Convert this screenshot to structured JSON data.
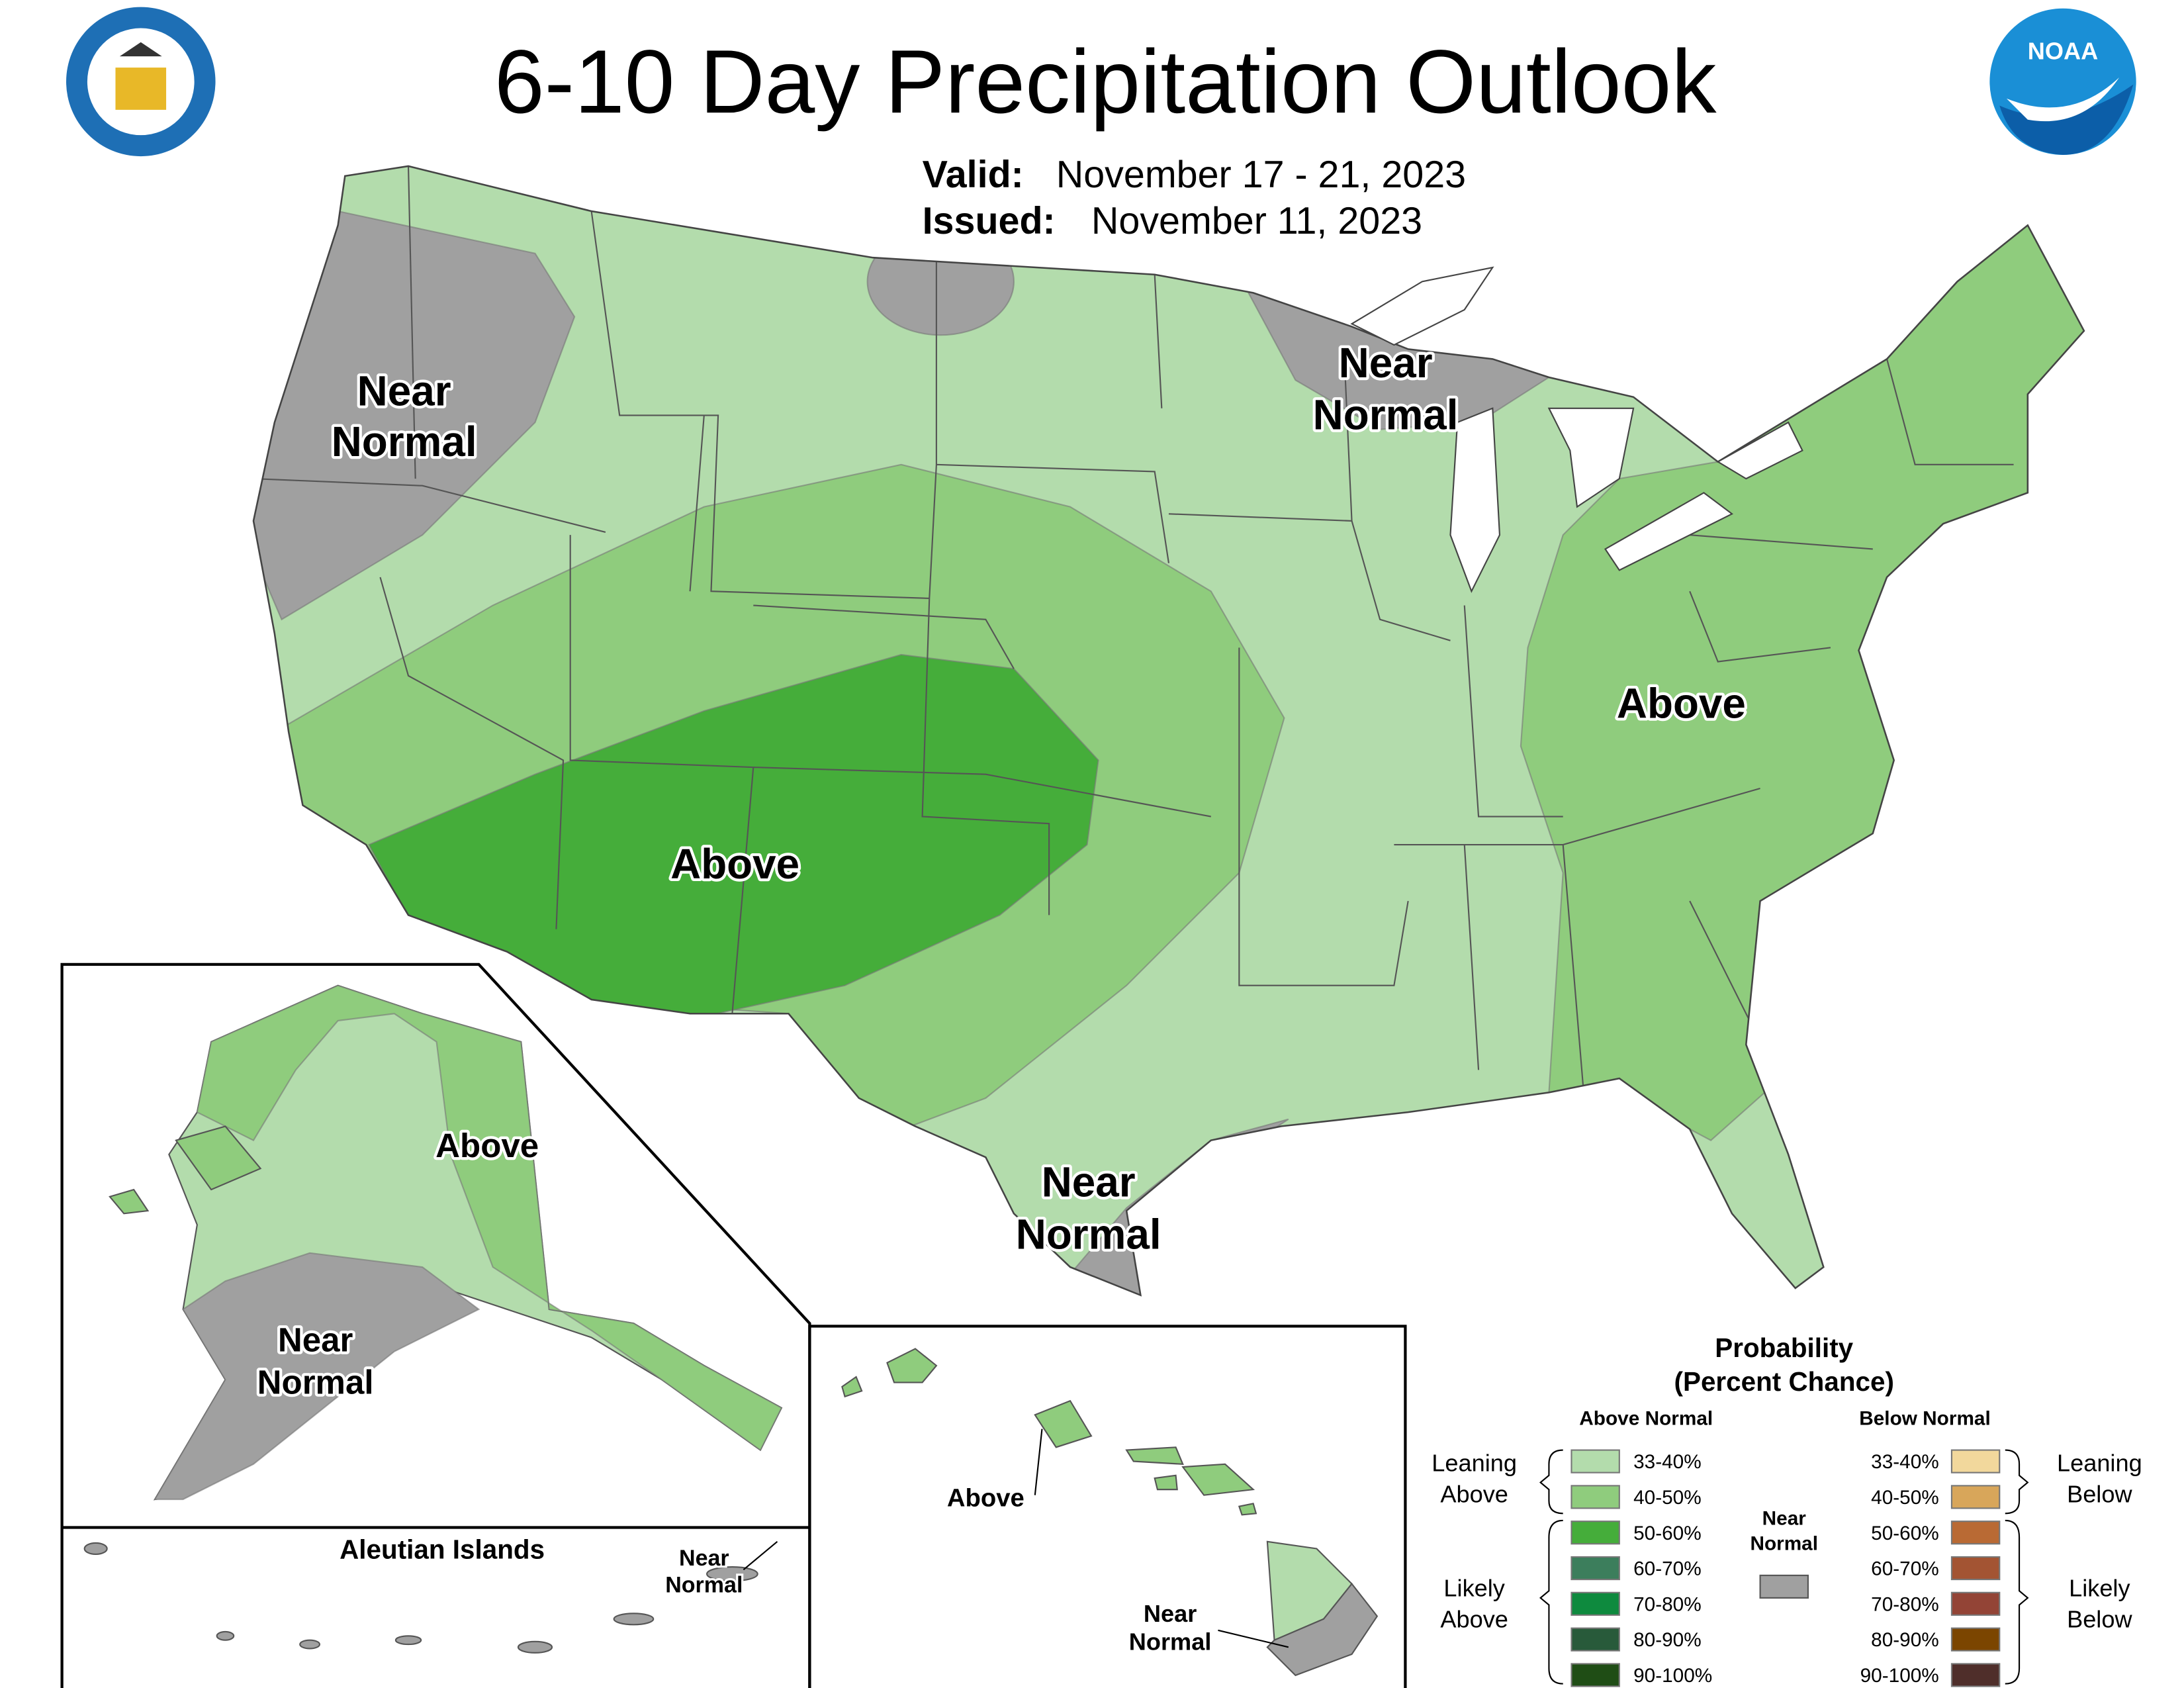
{
  "header": {
    "title": "6-10 Day Precipitation Outlook",
    "valid_label": "Valid:",
    "valid": "November 17 - 21, 2023",
    "issued_label": "Issued:",
    "issued": "November 11, 2023"
  },
  "logos": {
    "noaa": "NOAA"
  },
  "conus_labels": [
    [
      "Near",
      "Normal"
    ],
    [
      "Near",
      "Normal"
    ],
    [
      "Above"
    ],
    [
      "Above"
    ],
    [
      "Near",
      "Normal"
    ]
  ],
  "alaska": {
    "labels": [
      [
        "Above"
      ],
      [
        "Near",
        "Normal"
      ]
    ]
  },
  "aleutians": {
    "title": "Aleutian Islands",
    "labels": [
      [
        "Near",
        "Normal"
      ]
    ]
  },
  "hawaii": {
    "labels": [
      [
        "Above"
      ],
      [
        "Near",
        "Normal"
      ]
    ]
  },
  "legend": {
    "title": [
      "Probability",
      "(Percent Chance)"
    ],
    "above_heading": "Above Normal",
    "below_heading": "Below Normal",
    "above": [
      {
        "range": "33-40%",
        "color": "#b3dcac"
      },
      {
        "range": "40-50%",
        "color": "#8fcc7d"
      },
      {
        "range": "50-60%",
        "color": "#45ad3a"
      },
      {
        "range": "60-70%",
        "color": "#3c7e5c"
      },
      {
        "range": "70-80%",
        "color": "#0e8a3e"
      },
      {
        "range": "80-90%",
        "color": "#285a3a"
      },
      {
        "range": "90-100%",
        "color": "#1f4d15"
      }
    ],
    "below": [
      {
        "range": "33-40%",
        "color": "#f2d89c"
      },
      {
        "range": "40-50%",
        "color": "#d8a65a"
      },
      {
        "range": "50-60%",
        "color": "#b96a34"
      },
      {
        "range": "60-70%",
        "color": "#a35433"
      },
      {
        "range": "70-80%",
        "color": "#934436"
      },
      {
        "range": "80-90%",
        "color": "#7b4500"
      },
      {
        "range": "90-100%",
        "color": "#4f2e2a"
      }
    ],
    "near_normal": {
      "lines": [
        "Near",
        "Normal"
      ],
      "color": "#a0a0a0"
    },
    "leaning_above": [
      "Leaning",
      "Above"
    ],
    "likely_above": [
      "Likely",
      "Above"
    ],
    "leaning_below": [
      "Leaning",
      "Below"
    ],
    "likely_below": [
      "Likely",
      "Below"
    ]
  }
}
